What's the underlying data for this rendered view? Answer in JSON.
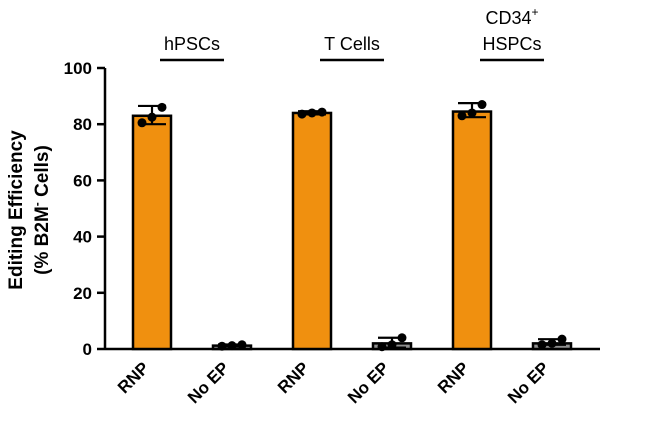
{
  "chart_data": {
    "type": "bar",
    "title": "",
    "ylabel_line1": "Editing Efficiency",
    "ylabel_line2_prefix": "(% B2M",
    "ylabel_line2_sup": "-",
    "ylabel_line2_suffix": " Cells)",
    "ylim": [
      0,
      100
    ],
    "yticks": [
      "0",
      "20",
      "40",
      "60",
      "80",
      "100"
    ],
    "grid": false,
    "colors": {
      "RNP": "#f0900f",
      "No EP": "#8f8f8f",
      "edge": "#000000",
      "dot": "#000000"
    },
    "groups": [
      {
        "label_main": "hPSCs",
        "label_sup": "",
        "label_second": "",
        "bars": [
          {
            "category": "RNP",
            "value": 83,
            "err": [
              80,
              86.5
            ],
            "points": [
              80.5,
              82.5,
              86
            ]
          },
          {
            "category": "No EP",
            "value": 1.2,
            "err": [
              0.9,
              1.6
            ],
            "points": [
              1.0,
              1.2,
              1.5
            ]
          }
        ]
      },
      {
        "label_main": "T Cells",
        "label_sup": "",
        "label_second": "",
        "bars": [
          {
            "category": "RNP",
            "value": 84,
            "err": [
              83.5,
              84.6
            ],
            "points": [
              83.6,
              84.0,
              84.3
            ]
          },
          {
            "category": "No EP",
            "value": 2,
            "err": [
              0.5,
              4
            ],
            "points": [
              0.8,
              1.5,
              4
            ]
          }
        ]
      },
      {
        "label_main": "CD34",
        "label_sup": "+",
        "label_second": "HSPCs",
        "bars": [
          {
            "category": "RNP",
            "value": 84.5,
            "err": [
              82.5,
              87.5
            ],
            "points": [
              83.0,
              84.0,
              87.0
            ]
          },
          {
            "category": "No EP",
            "value": 2,
            "err": [
              1.5,
              3.5
            ],
            "points": [
              1.5,
              2.0,
              3.5
            ]
          }
        ]
      }
    ]
  }
}
